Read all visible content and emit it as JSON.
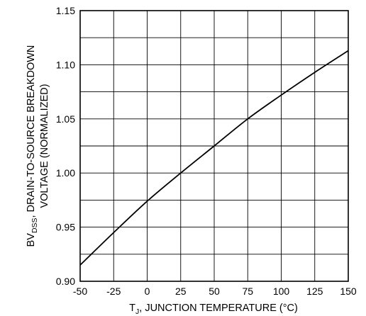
{
  "chart_data": {
    "type": "line",
    "title": "",
    "ylabel_line1_prefix": "BV",
    "ylabel_line1_subscript": "DSS",
    "ylabel_line1_suffix": ", DRAIN-TO-SOURCE BREAKDOWN",
    "ylabel_line2": "VOLTAGE (NORMALIZED)",
    "xlabel_prefix": "T",
    "xlabel_subscript": "J",
    "xlabel_suffix": ", JUNCTION TEMPERATURE (°C)",
    "xlim": [
      -50,
      150
    ],
    "ylim": [
      0.9,
      1.15
    ],
    "x_tick_labels": [
      "-50",
      "-25",
      "0",
      "25",
      "50",
      "75",
      "100",
      "125",
      "150"
    ],
    "y_tick_labels": [
      "0.90",
      "0.95",
      "1.00",
      "1.05",
      "1.10",
      "1.15"
    ],
    "grid": true,
    "line_color": "#000000",
    "series": [
      {
        "x": [
          -50,
          -25,
          0,
          25,
          50,
          75,
          100,
          125,
          150
        ],
        "y": [
          0.915,
          0.945,
          0.974,
          1.0,
          1.025,
          1.05,
          1.072,
          1.093,
          1.113
        ]
      }
    ]
  }
}
